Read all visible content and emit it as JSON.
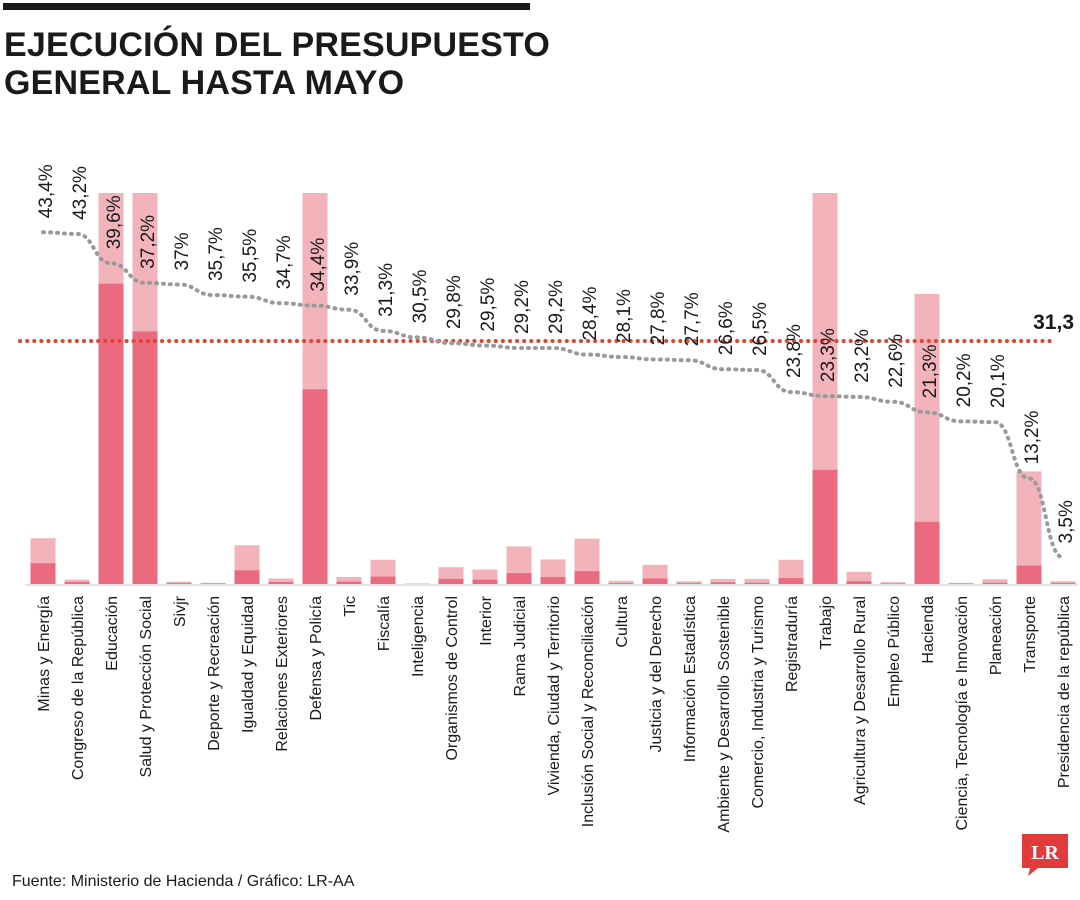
{
  "title_line1": "EJECUCIÓN DEL PRESUPUESTO",
  "title_line2": "GENERAL HASTA MAYO",
  "source": "Fuente: Ministerio de Hacienda / Gráfico: LR-AA",
  "logo_text": "LR",
  "colors": {
    "bar_total": "#f2b3bb",
    "bar_executed": "#ec6a80",
    "line": "#9a9a9a",
    "reference": "#e0442d",
    "text": "#1a1a1a",
    "logo_bg": "#e23b3b"
  },
  "chart_data": {
    "type": "bar",
    "categories": [
      "Minas y Energía",
      "Congreso de la República",
      "Educación",
      "Salud y Protección Social",
      "Sivjr",
      "Deporte y Recreación",
      "Igualdad y Equidad",
      "Relaciones Exteriores",
      "Defensa y Policía",
      "Tic",
      "Fiscalía",
      "Inteligencia",
      "Organismos de Control",
      "Interior",
      "Rama Judicial",
      "Vivienda, Ciudad y Territorio",
      "Inclusión Social y Reconciliación",
      "Cultura",
      "Justicia y del Derecho",
      "Información Estadística",
      "Ambiente y Desarrollo Sostenible",
      "Comercio, Industria y Turismo",
      "Registraduría",
      "Trabajo",
      "Agricultura y Desarrollo Rural",
      "Empleo Público",
      "Hacienda",
      "Ciencia, Tecnología e Innovación",
      "Planeación",
      "Transporte",
      "Presidencia de la república"
    ],
    "execution_labels": [
      "43,4%",
      "43,2%",
      "39,6%",
      "37,2%",
      "37%",
      "35,7%",
      "35,5%",
      "34,7%",
      "34,4%",
      "33,9%",
      "31,3%",
      "30,5%",
      "29,8%",
      "29,5%",
      "29,2%",
      "29,2%",
      "28,4%",
      "28,1%",
      "27,8%",
      "27,7%",
      "26,6%",
      "26,5%",
      "23,8%",
      "23,3%",
      "23,2%",
      "22,6%",
      "21,3%",
      "20,2%",
      "20,1%",
      "13,2%",
      "3,5%"
    ],
    "execution_pct": [
      43.4,
      43.2,
      39.6,
      37.2,
      37.0,
      35.7,
      35.5,
      34.7,
      34.4,
      33.9,
      31.3,
      30.5,
      29.8,
      29.5,
      29.2,
      29.2,
      28.4,
      28.1,
      27.8,
      27.7,
      26.6,
      26.5,
      23.8,
      23.3,
      23.2,
      22.6,
      21.3,
      20.2,
      20.1,
      13.2,
      3.5
    ],
    "series": [
      {
        "values": [
          11.7,
          1.1,
          100,
          100,
          0.6,
          0.3,
          9.9,
          1.4,
          100,
          1.8,
          6.2,
          0.1,
          4.3,
          3.7,
          9.6,
          6.3,
          11.6,
          0.8,
          4.9,
          0.7,
          1.3,
          1.3,
          6.2,
          100,
          3.1,
          0.5,
          74.2,
          0.3,
          1.2,
          28.8,
          0.7
        ]
      },
      {
        "values": [
          5.3,
          0.5,
          76.8,
          64.6,
          0.2,
          0.1,
          3.5,
          0.5,
          49.8,
          0.6,
          1.9,
          0.05,
          1.3,
          1.1,
          2.8,
          1.8,
          3.3,
          0.2,
          1.4,
          0.2,
          0.4,
          0.3,
          1.5,
          29.2,
          0.7,
          0.1,
          15.9,
          0.1,
          0.3,
          4.7,
          0.2
        ]
      }
    ],
    "reference_value": 31.3,
    "reference_label": "31,3"
  }
}
